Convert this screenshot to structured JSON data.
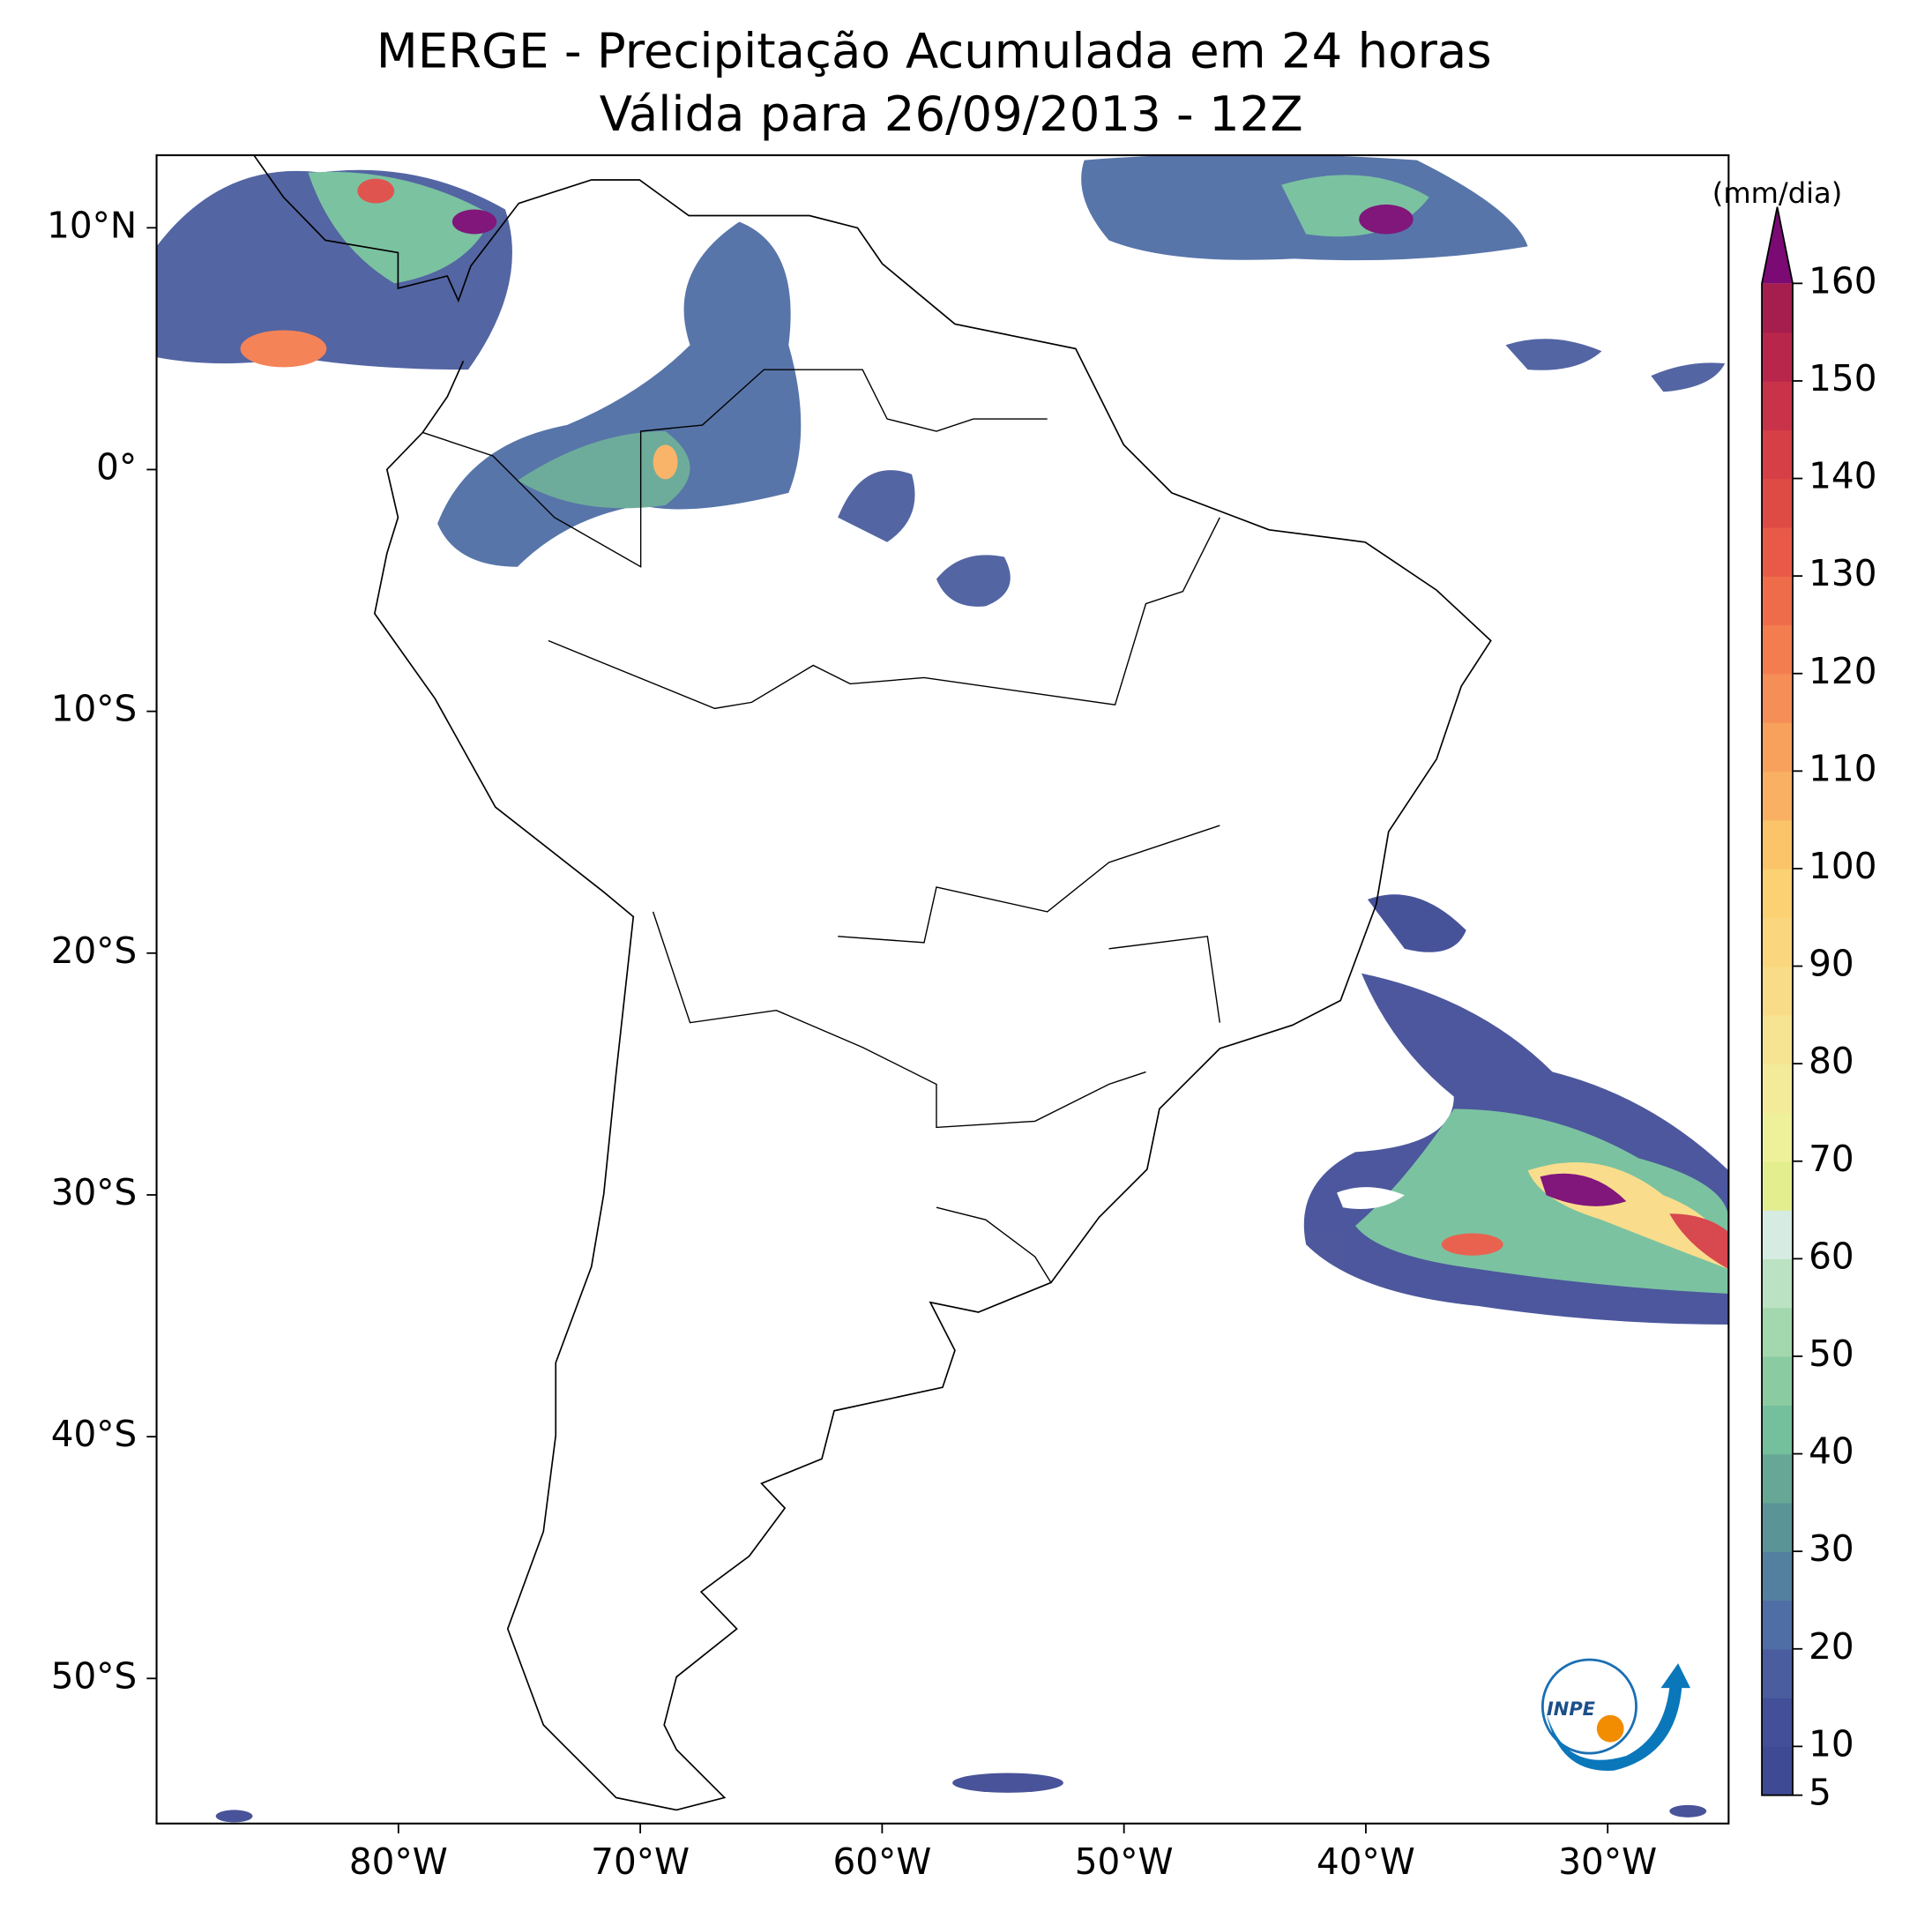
{
  "title": "MERGE - Precipitação Acumulada em 24 horas",
  "subtitle": "Válida para 26/09/2013 - 12Z",
  "map": {
    "xlim": [
      -90,
      -25
    ],
    "ylim": [
      -56,
      13
    ],
    "xticks": [
      {
        "value": -80,
        "label": "80°W"
      },
      {
        "value": -70,
        "label": "70°W"
      },
      {
        "value": -60,
        "label": "60°W"
      },
      {
        "value": -50,
        "label": "50°W"
      },
      {
        "value": -40,
        "label": "40°W"
      },
      {
        "value": -30,
        "label": "30°W"
      }
    ],
    "yticks": [
      {
        "value": 10,
        "label": "10°N"
      },
      {
        "value": 0,
        "label": "0°"
      },
      {
        "value": -10,
        "label": "10°S"
      },
      {
        "value": -20,
        "label": "20°S"
      },
      {
        "value": -30,
        "label": "30°S"
      },
      {
        "value": -40,
        "label": "40°S"
      },
      {
        "value": -50,
        "label": "50°S"
      }
    ]
  },
  "colorbar": {
    "label": "(mm/dia)",
    "lim": [
      5,
      160
    ],
    "ticks": [
      5,
      10,
      20,
      30,
      40,
      50,
      60,
      70,
      80,
      90,
      100,
      110,
      120,
      130,
      140,
      150,
      160
    ],
    "colors": [
      "#3e4a94",
      "#434f98",
      "#4a5d9e",
      "#4f6ea5",
      "#53809f",
      "#5a9497",
      "#66a895",
      "#74bf9c",
      "#8bcba2",
      "#a3d7ad",
      "#bbe2c2",
      "#d6ebe2",
      "#e3ee8e",
      "#eef09a",
      "#f3eb9a",
      "#f7e493",
      "#f9dc87",
      "#fad67f",
      "#fbd174",
      "#fbc469",
      "#f9b063",
      "#f8a15d",
      "#f68e57",
      "#f47d50",
      "#ef6c4a",
      "#e85a47",
      "#de4b45",
      "#d63f46",
      "#c93349",
      "#b9264c",
      "#a61e4d"
    ],
    "extend_color": "#7b0a74"
  },
  "logo": "INPE"
}
